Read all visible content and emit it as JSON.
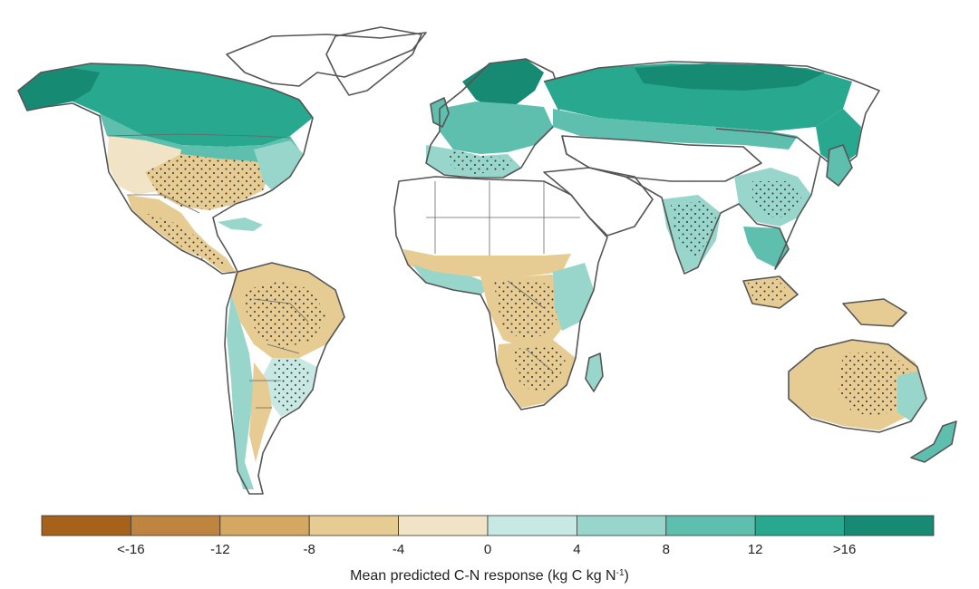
{
  "legend": {
    "title_main": "Mean predicted C-N response (kg C kg N",
    "title_sup": "-1",
    "title_close": ")",
    "bins": [
      {
        "color": "#a6611a"
      },
      {
        "color": "#bd8540"
      },
      {
        "color": "#d4a862"
      },
      {
        "color": "#e6cb92"
      },
      {
        "color": "#f1e4c6"
      },
      {
        "color": "#c8e8e3"
      },
      {
        "color": "#98d6cc"
      },
      {
        "color": "#5fbfae"
      },
      {
        "color": "#27a88f"
      },
      {
        "color": "#178a74"
      }
    ],
    "tick_labels": [
      "<-16",
      "-12",
      "-8",
      "-4",
      "0",
      "4",
      "8",
      "12",
      ">16"
    ]
  },
  "map": {
    "stipple_meaning": "",
    "background": "#ffffff",
    "no_data_color": "#ffffff"
  }
}
